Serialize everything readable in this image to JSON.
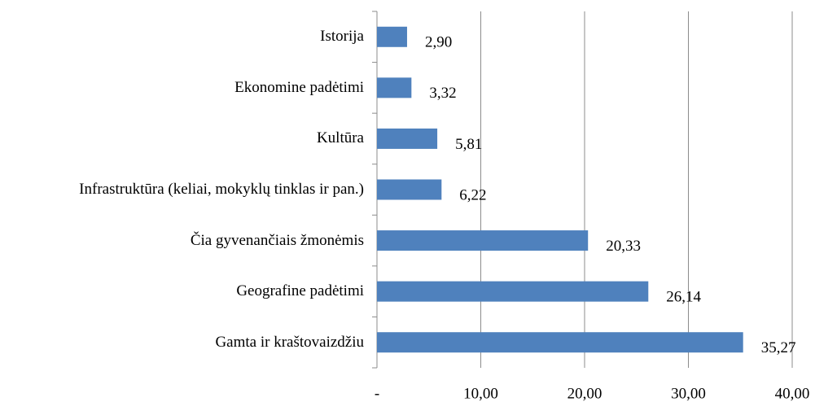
{
  "chart_data": {
    "type": "barh",
    "categories": [
      "Istorija",
      "Ekonomine padėtimi",
      "Kultūra",
      "Infrastruktūra (keliai, mokyklų tinklas ir pan.)",
      "Čia gyvenančiais žmonėmis",
      "Geografine padėtimi",
      "Gamta ir kraštovaizdžiu"
    ],
    "values": [
      2.9,
      3.32,
      5.81,
      6.22,
      20.33,
      26.14,
      35.27
    ],
    "value_labels": [
      "2,90",
      "3,32",
      "5,81",
      "6,22",
      "20,33",
      "26,14",
      "35,27"
    ],
    "color": "#4f81bd",
    "xlim": [
      0,
      40
    ],
    "xticks": [
      {
        "value": 0,
        "label": "-"
      },
      {
        "value": 10,
        "label": "10,00"
      },
      {
        "value": 20,
        "label": "20,00"
      },
      {
        "value": 30,
        "label": "30,00"
      },
      {
        "value": 40,
        "label": "40,00"
      }
    ],
    "grid": true
  }
}
